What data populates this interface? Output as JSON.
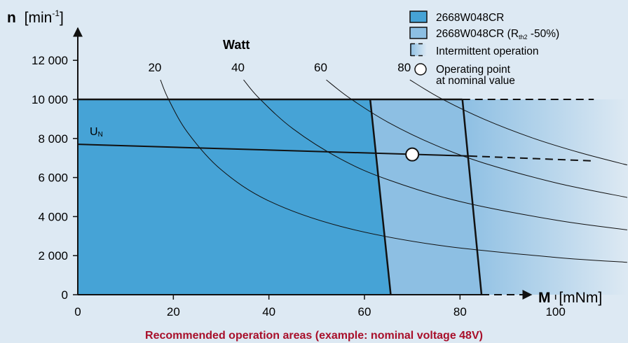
{
  "chart_data": {
    "type": "area",
    "title": "",
    "caption": "Recommended operation areas (example: nominal voltage 48V)",
    "xlabel": {
      "symbol": "M",
      "unit": "[mNm]"
    },
    "ylabel": {
      "symbol": "n",
      "unit_prefix": "[min",
      "unit_sup": "-1",
      "unit_suffix": "]"
    },
    "xlim": [
      0,
      115
    ],
    "ylim": [
      0,
      13000
    ],
    "x_ticks": [
      {
        "value": 0,
        "label": "0"
      },
      {
        "value": 20,
        "label": "20"
      },
      {
        "value": 40,
        "label": "40"
      },
      {
        "value": 60,
        "label": "60"
      },
      {
        "value": 80,
        "label": "80"
      },
      {
        "value": 100,
        "label": "100"
      }
    ],
    "y_ticks": [
      {
        "value": 0,
        "label": "0"
      },
      {
        "value": 2000,
        "label": "2 000"
      },
      {
        "value": 4000,
        "label": "4 000"
      },
      {
        "value": 6000,
        "label": "6 000"
      },
      {
        "value": 8000,
        "label": "8 000"
      },
      {
        "value": 10000,
        "label": "10 000"
      },
      {
        "value": 12000,
        "label": "12 000"
      }
    ],
    "grid": false,
    "colors": {
      "continuous": "#46a3d6",
      "rth2": "#8dbfe3",
      "intermittent_start": "#8dbfe3",
      "intermittent_end": "#dde9f3",
      "background": "#dde9f3",
      "line": "#111111",
      "marker_fill": "#ffffff"
    },
    "regions": {
      "continuous": {
        "name": "2668W048CR",
        "polygon": [
          [
            0,
            0
          ],
          [
            0,
            10000
          ],
          [
            61.2,
            10000
          ],
          [
            65.5,
            0
          ]
        ]
      },
      "rth2": {
        "name": "2668W048CR",
        "name_sub": "th2",
        "polygon": [
          [
            61.2,
            10000
          ],
          [
            80.5,
            10000
          ],
          [
            84.5,
            0
          ],
          [
            65.5,
            0
          ]
        ]
      },
      "intermittent": {
        "name": "Intermittent operation",
        "x_range": [
          80.5,
          115
        ],
        "y_range": [
          0,
          10000
        ]
      }
    },
    "speed_limit": {
      "y": 10000,
      "solid_to_x": 80.5,
      "dashed_to_x": 108
    },
    "voltage_line": {
      "label": "U",
      "label_sub": "N",
      "solid": [
        [
          0,
          7700
        ],
        [
          82,
          7100
        ]
      ],
      "dashed": [
        [
          82,
          7100
        ],
        [
          108,
          6850
        ]
      ]
    },
    "operating_point": {
      "label": "Operating point at nominal value",
      "x": 70,
      "y": 7180
    },
    "power_curves": {
      "title": "Watt",
      "series": [
        {
          "label": "20",
          "points": [
            [
              17.3,
              11000
            ],
            [
              19,
              10000
            ],
            [
              23,
              8300
            ],
            [
              30,
              6400
            ],
            [
              40,
              4800
            ],
            [
              55,
              3500
            ],
            [
              75,
              2550
            ],
            [
              100,
              1910
            ],
            [
              115,
              1660
            ]
          ]
        },
        {
          "label": "40",
          "points": [
            [
              34.7,
              11000
            ],
            [
              38,
              10050
            ],
            [
              45,
              8500
            ],
            [
              55,
              6950
            ],
            [
              65,
              5880
            ],
            [
              80,
              4770
            ],
            [
              100,
              3820
            ],
            [
              115,
              3320
            ]
          ]
        },
        {
          "label": "60",
          "points": [
            [
              52,
              11000
            ],
            [
              57,
              10050
            ],
            [
              65,
              8820
            ],
            [
              75,
              7640
            ],
            [
              85,
              6740
            ],
            [
              100,
              5730
            ],
            [
              115,
              4980
            ]
          ]
        },
        {
          "label": "80",
          "points": [
            [
              69.5,
              11000
            ],
            [
              76,
              10050
            ],
            [
              85,
              8990
            ],
            [
              95,
              8040
            ],
            [
              105,
              7280
            ],
            [
              115,
              6640
            ]
          ]
        }
      ]
    },
    "legend": {
      "position": "top-right",
      "items": [
        {
          "type": "continuous",
          "text": "2668W048CR"
        },
        {
          "type": "rth2",
          "text": "2668W048CR (R",
          "sub": "th2",
          "tail": " -50%)"
        },
        {
          "type": "intermittent",
          "text": "Intermittent operation"
        },
        {
          "type": "point",
          "lines": [
            "Operating point",
            "at nominal value"
          ]
        }
      ]
    }
  }
}
